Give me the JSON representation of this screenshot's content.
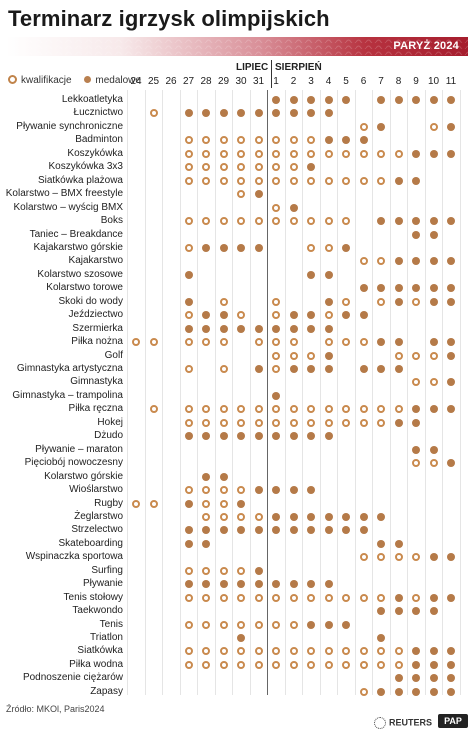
{
  "title": "Terminarz igrzysk olimpijskich",
  "banner_label": "PARYŻ 2024",
  "legend": {
    "qualification": "kwalifikacje",
    "medal": "medalowe"
  },
  "months": {
    "july": "LIPIEC",
    "august": "SIERPIEŃ"
  },
  "days": [
    "24",
    "25",
    "26",
    "27",
    "28",
    "29",
    "30",
    "31",
    "1",
    "2",
    "3",
    "4",
    "5",
    "6",
    "7",
    "8",
    "9",
    "10",
    "11"
  ],
  "colors": {
    "qualification": "#c98a4e",
    "medal": "#b57a48",
    "banner_dark": "#a51d2d"
  },
  "sports": [
    {
      "name": "Lekkoatletyka",
      "marks": "........mmmmm.mmmmm"
    },
    {
      "name": "Łucznictwo",
      "marks": ".q.mmmmmmmmm......."
    },
    {
      "name": "Pływanie synchroniczne",
      "marks": ".............qm..qm"
    },
    {
      "name": "Badminton",
      "marks": "...qqqqqqqqmmm....."
    },
    {
      "name": "Koszykówka",
      "marks": "...qqqqqqqqqqqqqmmm"
    },
    {
      "name": "Koszykówka 3x3",
      "marks": "...qqqqqqqm........"
    },
    {
      "name": "Siatkówka plażowa",
      "marks": "...qqqqqqqqqqqqmm.."
    },
    {
      "name": "Kolarstwo – BMX freestyle",
      "marks": "......qm..........."
    },
    {
      "name": "Kolarstwo – wyścig BMX",
      "marks": "........qm........."
    },
    {
      "name": "Boks",
      "marks": "...qqqqqqqqqq.mmmmm"
    },
    {
      "name": "Taniec – Breakdance",
      "marks": "................mm."
    },
    {
      "name": "Kajakarstwo górskie",
      "marks": "...qmmmm..qqm......"
    },
    {
      "name": "Kajakarstwo",
      "marks": ".............qqmmmm"
    },
    {
      "name": "Kolarstwo szosowe",
      "marks": "...m......mm......."
    },
    {
      "name": "Kolarstwo torowe",
      "marks": ".............mmmmmm"
    },
    {
      "name": "Skoki do wody",
      "marks": "...m.q..q..mq.qmqmm"
    },
    {
      "name": "Jeździectwo",
      "marks": "...qmmq.qmmqmm....."
    },
    {
      "name": "Szermierka",
      "marks": "...mmmmmmmmm......."
    },
    {
      "name": "Piłka nożna",
      "marks": "qq.qqq.qqq.qqqmm.mm"
    },
    {
      "name": "Golf",
      "marks": "........qqqm...qqqm"
    },
    {
      "name": "Gimnastyka artystyczna",
      "marks": "...q.q.mqmmm.mmm..."
    },
    {
      "name": "Gimnastyka",
      "marks": "................qqm"
    },
    {
      "name": "Gimnastyka – trampolina",
      "marks": "........m.........."
    },
    {
      "name": "Piłka ręczna",
      "marks": ".q.qqqqqqqqqqqqqmmm"
    },
    {
      "name": "Hokej",
      "marks": "...qqqqqqqqqqqqmm.."
    },
    {
      "name": "Dżudo",
      "marks": "...mmmmmmmmm......."
    },
    {
      "name": "Pływanie – maraton",
      "marks": "................mm."
    },
    {
      "name": "Pięciobój nowoczesny",
      "marks": "................qqm"
    },
    {
      "name": "Kolarstwo górskie",
      "marks": "....mm............."
    },
    {
      "name": "Wioślarstwo",
      "marks": "...qqqqmmmm........"
    },
    {
      "name": "Rugby",
      "marks": "qq.mqqm............"
    },
    {
      "name": "Żeglarstwo",
      "marks": "....qqqqmmmmmmm...."
    },
    {
      "name": "Strzelectwo",
      "marks": "...mmmmmmmmmmm....."
    },
    {
      "name": "Skateboarding",
      "marks": "...mm.........mm..."
    },
    {
      "name": "Wspinaczka sportowa",
      "marks": ".............qqqqmm"
    },
    {
      "name": "Surfing",
      "marks": "...qqqqm..........."
    },
    {
      "name": "Pływanie",
      "marks": "...mmmmmmmmm......."
    },
    {
      "name": "Tenis stołowy",
      "marks": "...qqqqqqqqqqqqmqmm"
    },
    {
      "name": "Taekwondo",
      "marks": "..............mmmm."
    },
    {
      "name": "Tenis",
      "marks": "...qqqqqqqmmm......"
    },
    {
      "name": "Triatlon",
      "marks": "......m.......m...."
    },
    {
      "name": "Siatkówka",
      "marks": "...qqqqqqqqqqqqqmmm"
    },
    {
      "name": "Piłka wodna",
      "marks": "...qqqqqqqqqqqqqmmm"
    },
    {
      "name": "Podnoszenie ciężarów",
      "marks": "...............mmmm"
    },
    {
      "name": "Zapasy",
      "marks": ".............qmmmmm"
    }
  ],
  "source": "Źródło: MKOl, Paris2024",
  "reuters": "REUTERS",
  "pap": "PAP"
}
